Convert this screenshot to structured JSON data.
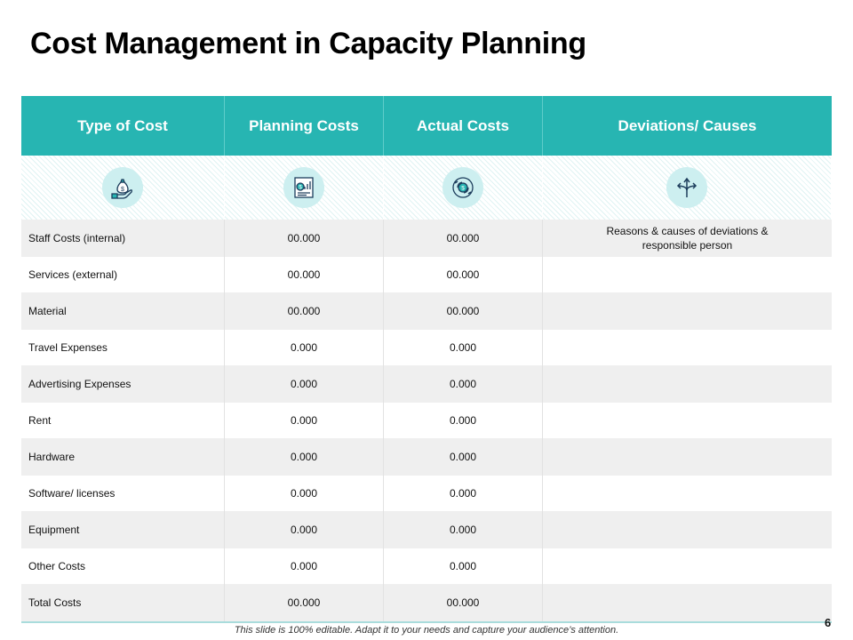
{
  "title": "Cost Management in Capacity Planning",
  "colors": {
    "accent": "#27b5b2",
    "icon_circle": "#cdeff0",
    "row_alt": "#efefef"
  },
  "table": {
    "headers": [
      "Type of Cost",
      "Planning Costs",
      "Actual Costs",
      "Deviations/ Causes"
    ],
    "icons": [
      "money-bag-hand-icon",
      "financial-report-icon",
      "money-cycle-icon",
      "split-arrows-icon"
    ],
    "rows": [
      {
        "type": "Staff Costs (internal)",
        "planning": "00.000",
        "actual": "00.000",
        "deviation": "Reasons & causes of deviations & responsible person"
      },
      {
        "type": "Services (external)",
        "planning": "00.000",
        "actual": "00.000",
        "deviation": ""
      },
      {
        "type": "Material",
        "planning": "00.000",
        "actual": "00.000",
        "deviation": ""
      },
      {
        "type": "Travel Expenses",
        "planning": "0.000",
        "actual": "0.000",
        "deviation": ""
      },
      {
        "type": "Advertising Expenses",
        "planning": "0.000",
        "actual": "0.000",
        "deviation": ""
      },
      {
        "type": "Rent",
        "planning": "0.000",
        "actual": "0.000",
        "deviation": ""
      },
      {
        "type": "Hardware",
        "planning": "0.000",
        "actual": "0.000",
        "deviation": ""
      },
      {
        "type": "Software/ licenses",
        "planning": "0.000",
        "actual": "0.000",
        "deviation": ""
      },
      {
        "type": "Equipment",
        "planning": "0.000",
        "actual": "0.000",
        "deviation": ""
      },
      {
        "type": "Other Costs",
        "planning": "0.000",
        "actual": "0.000",
        "deviation": ""
      },
      {
        "type": "Total Costs",
        "planning": "00.000",
        "actual": "00.000",
        "deviation": ""
      }
    ]
  },
  "footer": "This slide is 100% editable. Adapt it to your needs and capture your audience’s attention.",
  "page_number": "6"
}
